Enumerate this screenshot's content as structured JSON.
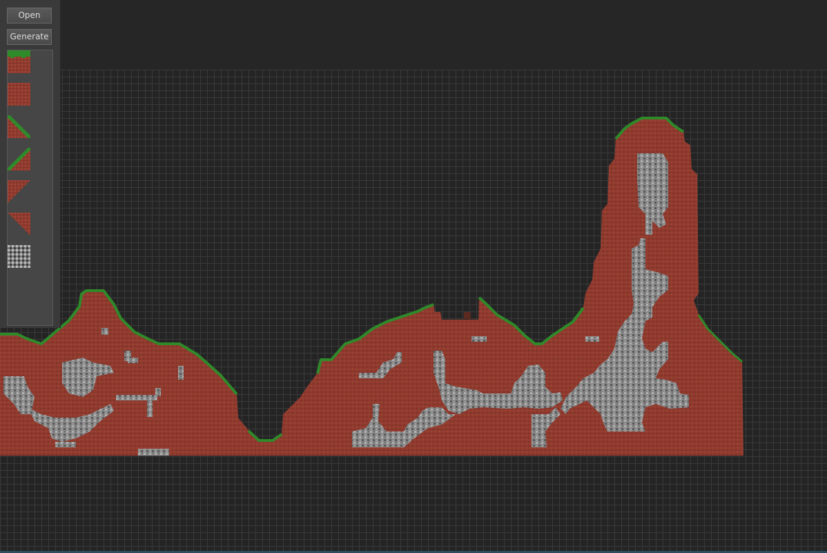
{
  "toolbar": {
    "open_label": "Open",
    "generate_label": "Generate"
  },
  "palette": {
    "tiles": [
      {
        "name": "grass-top-tile-icon"
      },
      {
        "name": "dirt-tile-icon"
      },
      {
        "name": "grass-slope-left-tile-icon"
      },
      {
        "name": "grass-slope-right-tile-icon"
      },
      {
        "name": "dirt-slope-left-tile-icon"
      },
      {
        "name": "dirt-slope-right-tile-icon"
      },
      {
        "name": "stone-tile-icon"
      }
    ]
  },
  "colors": {
    "background": "#262626",
    "grid_line": "#3a3a3a",
    "dirt": "#8f3a2e",
    "grass": "#2f8a2a",
    "stone": "#8a8a8a"
  }
}
